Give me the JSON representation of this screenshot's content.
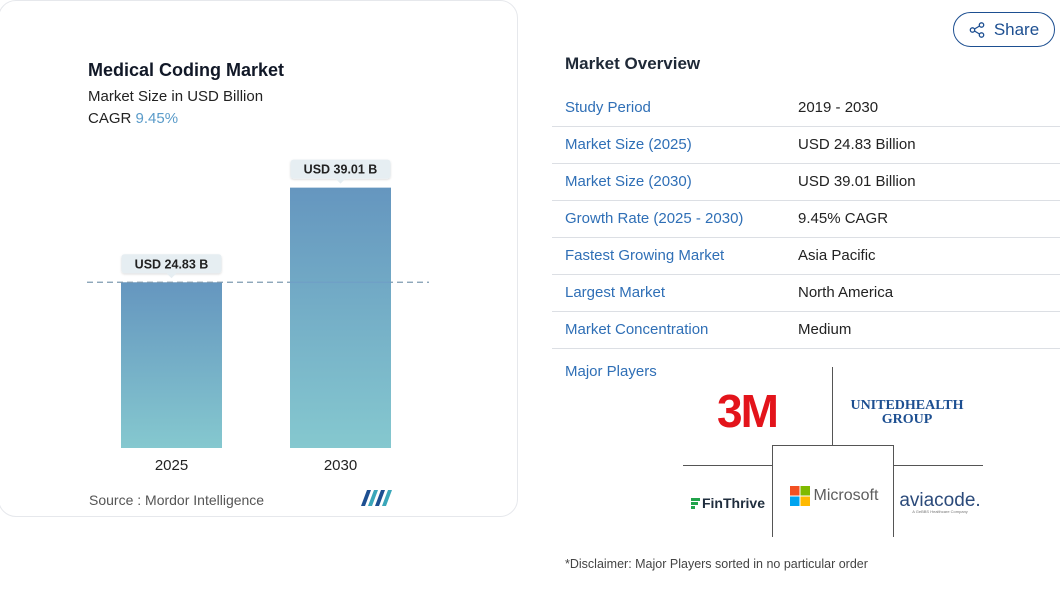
{
  "share": {
    "label": "Share",
    "icon": "share-icon"
  },
  "chart_data": {
    "type": "bar",
    "title": "Medical Coding Market",
    "subtitle": "Market Size in USD Billion",
    "cagr_label": "CAGR",
    "cagr_value": "9.45%",
    "categories": [
      "2025",
      "2030"
    ],
    "values": [
      24.83,
      39.01
    ],
    "data_labels": [
      "USD 24.83 B",
      "USD 39.01 B"
    ],
    "ylim": [
      0,
      43
    ],
    "reference_line_value": 24.83,
    "grid": false,
    "source": "Source :  Mordor Intelligence",
    "colors": {
      "bar_top": "#6596bf",
      "bar_bottom": "#85c8cf",
      "label_bg": "#e6eef2",
      "ref_line": "#7f9bb0",
      "cagr": "#5a9bc9"
    }
  },
  "overview": {
    "title": "Market Overview",
    "rows": [
      {
        "label": "Study Period",
        "value": "2019 - 2030"
      },
      {
        "label": "Market Size (2025)",
        "value": "USD 24.83 Billion"
      },
      {
        "label": "Market Size (2030)",
        "value": "USD 39.01 Billion"
      },
      {
        "label": "Growth Rate (2025 - 2030)",
        "value": "9.45% CAGR"
      },
      {
        "label": "Fastest Growing Market",
        "value": "Asia Pacific"
      },
      {
        "label": "Largest Market",
        "value": "North America"
      },
      {
        "label": "Market Concentration",
        "value": "Medium"
      }
    ],
    "players_label": "Major Players",
    "players": {
      "3m": "3M",
      "unitedhealth_line1": "UNITEDHEALTH",
      "unitedhealth_line2": "GROUP",
      "finthrive": "FinThrive",
      "microsoft": "Microsoft",
      "aviacode": "aviacode.",
      "aviacode_tag": "A GeBBS Healthcare Company"
    },
    "disclaimer": "*Disclaimer: Major Players sorted in no particular order"
  },
  "colors": {
    "link_blue": "#2f6fb6",
    "brand_navy": "#1d4f91",
    "three_m_red": "#e3141b"
  }
}
